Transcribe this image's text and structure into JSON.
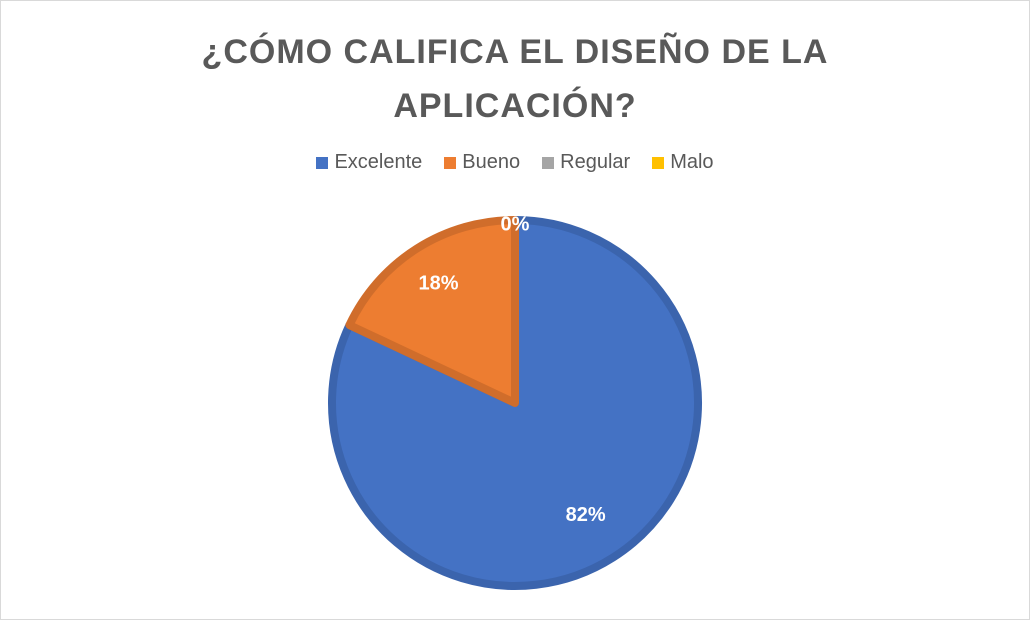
{
  "chart_data": {
    "type": "pie",
    "title": "¿CÓMO CALIFICA EL DISEÑO DE LA APLICACIÓN?",
    "title_lines": [
      "¿CÓMO CALIFICA EL DISEÑO DE LA",
      "APLICACIÓN?"
    ],
    "categories": [
      "Excelente",
      "Bueno",
      "Regular",
      "Malo"
    ],
    "values": [
      82,
      18,
      0,
      0
    ],
    "data_labels": [
      "82%",
      "18%",
      "0%",
      "0%"
    ],
    "colors": [
      "#4472c4",
      "#ed7d31",
      "#a5a5a5",
      "#ffc000"
    ],
    "legend_position": "top"
  }
}
